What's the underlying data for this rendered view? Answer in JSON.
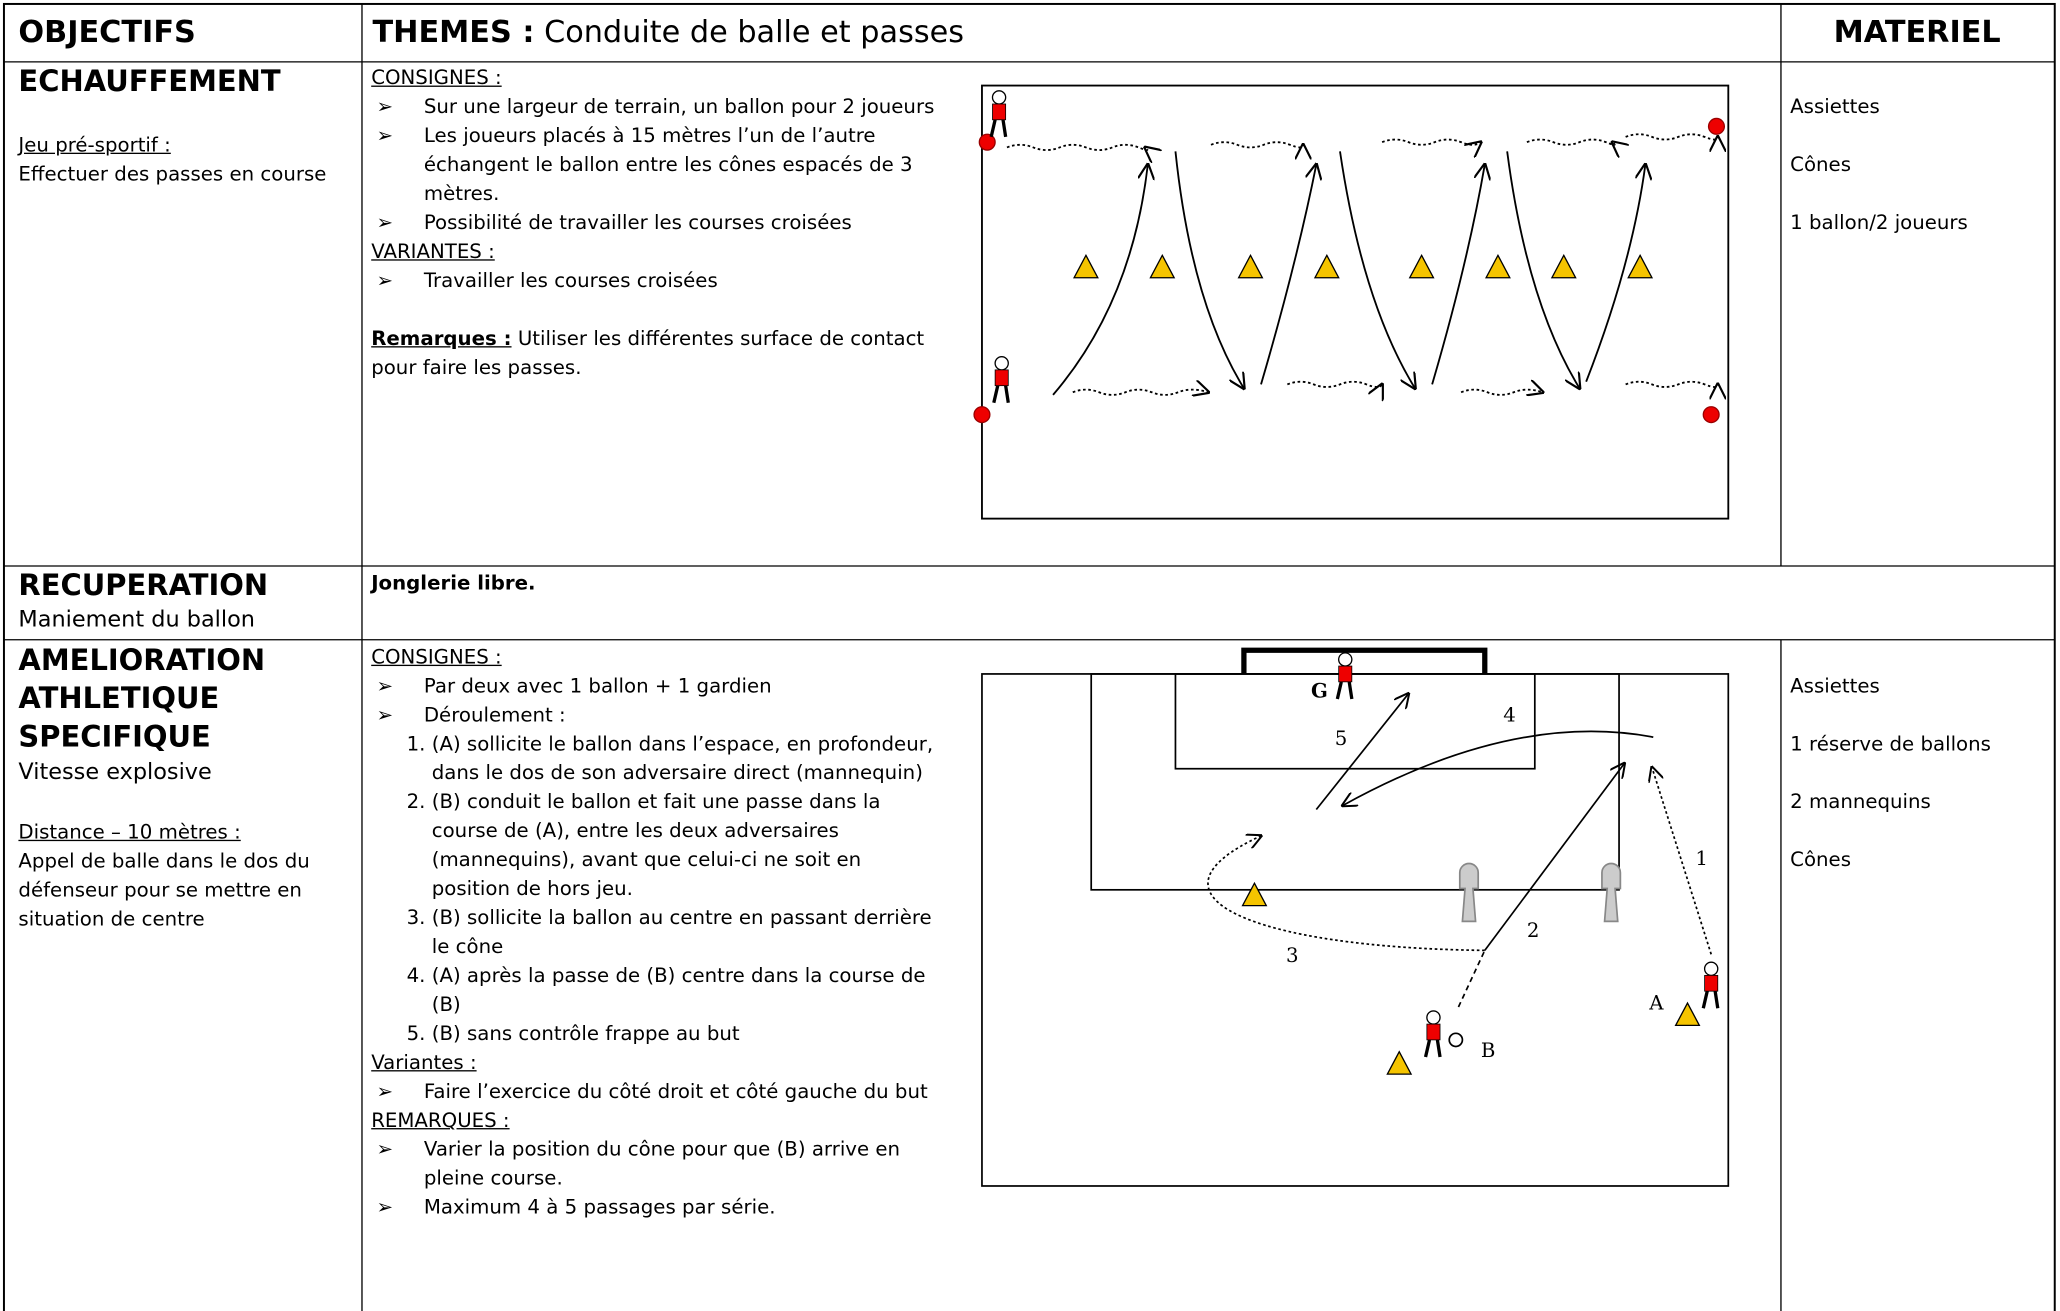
{
  "header": {
    "objectifs": "OBJECTIFS",
    "themes_label": "THEMES :",
    "themes": "Conduite de balle et passes",
    "materiel": "MATERIEL"
  },
  "sections": [
    {
      "title": "ECHAUFFEMENT",
      "sub_label": "Jeu pré-sportif :",
      "sub_text": "Effectuer des passes en course",
      "consignes_label": "CONSIGNES :",
      "consignes": [
        "Sur une largeur de terrain, un ballon pour 2 joueurs",
        "Les joueurs placés à 15 mètres l’un de l’autre échangent le ballon entre les cônes espacés de 3 mètres.",
        "Possibilité de travailler les courses croisées"
      ],
      "variantes_label": "VARIANTES :",
      "variantes": [
        "Travailler les courses croisées"
      ],
      "remarques_label": "Remarques :",
      "remarques": "Utiliser les différentes surface de contact pour faire les passes.",
      "materiel": [
        "Assiettes",
        "Cônes",
        "1 ballon/2 joueurs"
      ]
    },
    {
      "title": "RECUPERATION",
      "subtitle": "Maniement du ballon",
      "content": "Jonglerie libre."
    },
    {
      "title": "AMELIORATION ATHLETIQUE SPECIFIQUE",
      "subtitle": "Vitesse explosive",
      "sub_label": "Distance – 10 mètres :",
      "sub_text": "Appel de balle dans le dos du défenseur pour se mettre en situation de centre",
      "consignes_label": "CONSIGNES :",
      "consignes": [
        "Par deux avec 1 ballon + 1 gardien",
        "Déroulement :"
      ],
      "steps": [
        "(A) sollicite le ballon dans l’espace, en profondeur, dans le dos de son adversaire direct (mannequin)",
        "(B) conduit le ballon et fait une passe dans la course de (A), entre les deux adversaires (mannequins), avant que celui-ci ne soit en position de hors jeu.",
        "(B) sollicite la ballon au  centre en passant derrière le cône",
        "(A) après la passe de (B) centre dans la course de (B)",
        "(B) sans contrôle frappe au but"
      ],
      "variantes_label": "Variantes :",
      "variantes": [
        "Faire l’exercice du côté droit et côté gauche du but"
      ],
      "remarques_label": "REMARQUES :",
      "remarques": [
        "Varier la position du cône pour que (B) arrive en pleine course.",
        "Maximum 4 à 5 passages par série."
      ],
      "diagram_labels": [
        "G",
        "5",
        "4",
        "1",
        "2",
        "3",
        "A",
        "B"
      ],
      "materiel": [
        "Assiettes",
        "1 réserve de ballons",
        "2 mannequins",
        "Cônes"
      ]
    }
  ]
}
